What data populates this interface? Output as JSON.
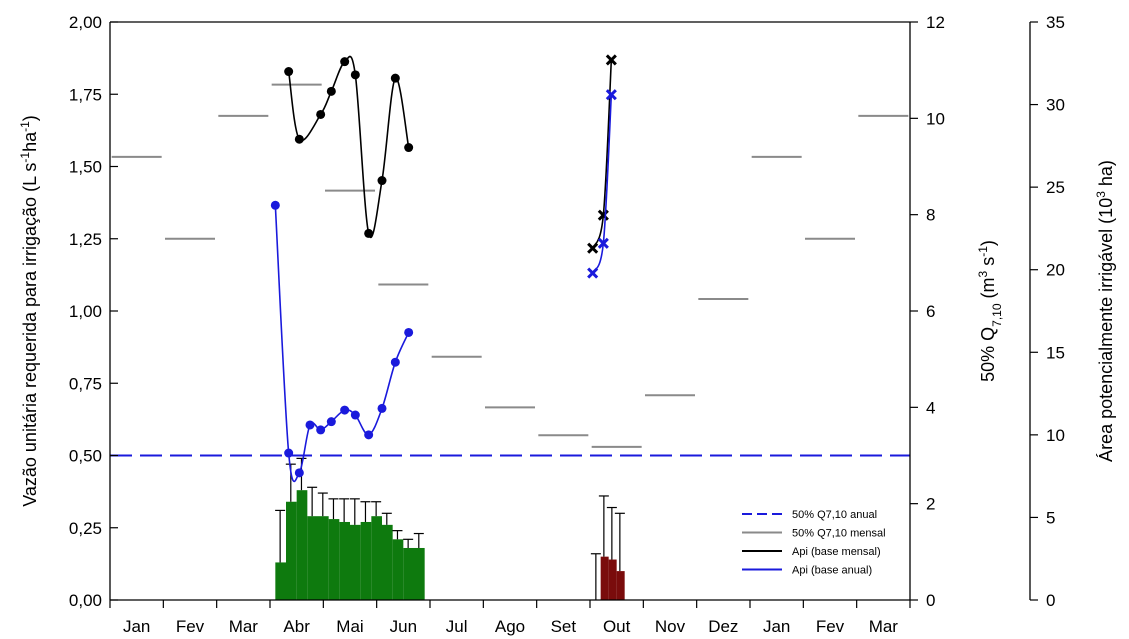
{
  "chart_data": {
    "type": "combo",
    "months": [
      "Jan",
      "Fev",
      "Mar",
      "Abr",
      "Mai",
      "Jun",
      "Jul",
      "Ago",
      "Set",
      "Out",
      "Nov",
      "Dez",
      "Jan",
      "Fev",
      "Mar"
    ],
    "axes": {
      "left": {
        "label": "Vazão unitária requerida para irrigação (L s-1ha-1)",
        "label_parts": [
          "Vazão unitária requerida para irrigação (L s",
          "-1",
          "ha",
          "-1",
          ")"
        ],
        "range": [
          0,
          2.0
        ],
        "ticks": [
          "0,00",
          "0,25",
          "0,50",
          "0,75",
          "1,00",
          "1,25",
          "1,50",
          "1,75",
          "2,00"
        ]
      },
      "middle": {
        "label": "50% Q7,10 (m3 s-1)",
        "label_parts": [
          "50% Q",
          "7,10",
          " (m",
          "3",
          " s",
          "-1",
          ")"
        ],
        "range": [
          0,
          12
        ],
        "ticks": [
          "0",
          "2",
          "4",
          "6",
          "8",
          "10",
          "12"
        ]
      },
      "right": {
        "label": "Área potencialmente irrigável (103 ha)",
        "label_parts": [
          "Área potencialmente irrigável (10",
          "3",
          " ha)"
        ],
        "range": [
          0,
          35
        ],
        "ticks": [
          "0",
          "5",
          "10",
          "15",
          "20",
          "25",
          "30",
          "35"
        ]
      }
    },
    "legend": [
      {
        "label": "50% Q7,10 anual",
        "style": "dashed",
        "color": "#1a1adc"
      },
      {
        "label": "50% Q7,10 mensal",
        "style": "solid",
        "color": "#8a8a8a"
      },
      {
        "label": "Api (base mensal)",
        "style": "solid",
        "color": "#000000"
      },
      {
        "label": "Api (base anual)",
        "style": "solid",
        "color": "#1a1adc"
      }
    ],
    "q710_anual": 3.0,
    "q710_mensal": [
      9.2,
      7.5,
      10.05,
      10.7,
      8.5,
      6.55,
      5.05,
      4.0,
      3.42,
      3.18,
      4.25,
      6.25,
      9.2,
      7.5,
      10.05
    ],
    "bars_green": {
      "x": [
        3.1,
        3.3,
        3.5,
        3.7,
        3.9,
        4.1,
        4.3,
        4.5,
        4.7,
        4.9,
        5.1,
        5.3,
        5.5,
        5.7
      ],
      "values": [
        0.13,
        0.34,
        0.38,
        0.29,
        0.29,
        0.28,
        0.27,
        0.26,
        0.27,
        0.29,
        0.26,
        0.21,
        0.18,
        0.18
      ],
      "errors": [
        0.18,
        0.13,
        0.11,
        0.1,
        0.08,
        0.07,
        0.08,
        0.09,
        0.07,
        0.05,
        0.04,
        0.03,
        0.03,
        0.05
      ],
      "color": "#0e7a0e"
    },
    "bars_red": {
      "x": [
        9.05,
        9.2,
        9.35,
        9.5
      ],
      "values": [
        0.0,
        0.15,
        0.14,
        0.1
      ],
      "errors": [
        0.16,
        0.21,
        0.18,
        0.2
      ],
      "color": "#7a0c0c"
    },
    "api_mensal_circles": {
      "x": [
        3.35,
        3.55,
        3.95,
        4.15,
        4.4,
        4.6,
        4.85,
        5.1,
        5.35,
        5.6
      ],
      "y": [
        32.0,
        27.9,
        29.4,
        30.8,
        32.6,
        31.8,
        22.2,
        25.4,
        31.6,
        27.4
      ]
    },
    "api_mensal_crosses": {
      "x": [
        9.05,
        9.25,
        9.4
      ],
      "y": [
        21.3,
        23.3,
        32.7
      ]
    },
    "api_anual_circles": {
      "x": [
        3.1,
        3.35,
        3.55,
        3.75,
        3.95,
        4.15,
        4.4,
        4.6,
        4.85,
        5.1,
        5.35,
        5.6
      ],
      "y": [
        23.9,
        8.9,
        7.7,
        10.6,
        10.3,
        10.8,
        11.5,
        11.2,
        10.0,
        11.6,
        14.4,
        16.2
      ]
    },
    "api_anual_crosses": {
      "x": [
        9.05,
        9.25,
        9.4
      ],
      "y": [
        19.8,
        21.6,
        30.6
      ]
    }
  }
}
